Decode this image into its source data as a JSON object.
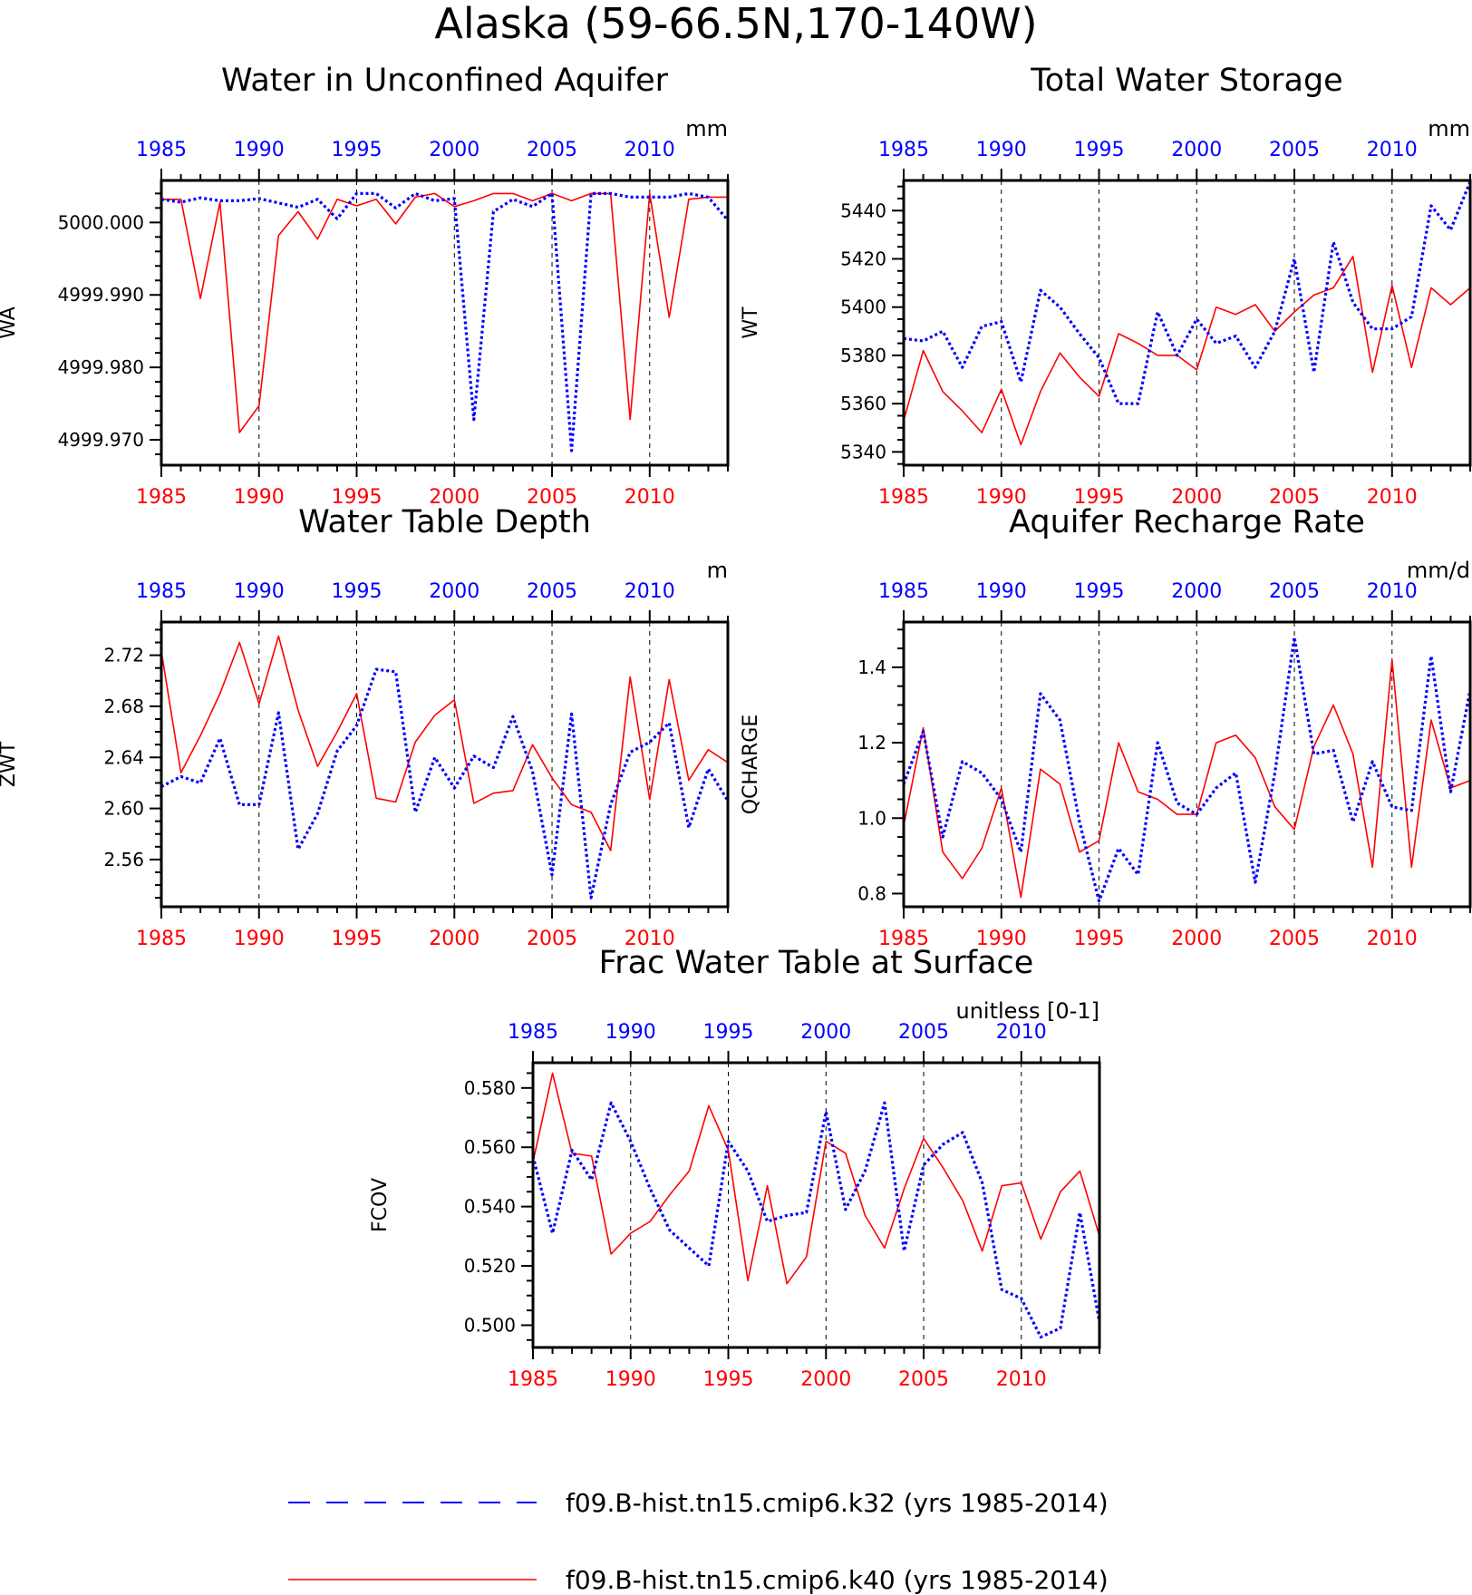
{
  "title": "Alaska (59-66.5N,170-140W)",
  "colors": {
    "k32": "#0000ff",
    "k40": "#ff0000",
    "axis": "#000000"
  },
  "legend": [
    {
      "label": "f09.B-hist.tn15.cmip6.k32 (yrs 1985-2014)",
      "color": "#0000ff",
      "style": "dashed"
    },
    {
      "label": "f09.B-hist.tn15.cmip6.k40 (yrs 1985-2014)",
      "color": "#ff0000",
      "style": "solid"
    }
  ],
  "chart_data": [
    {
      "type": "line",
      "title": "Water in Unconfined Aquifer",
      "units": "mm",
      "ylabel": "WA",
      "xlim": [
        1985,
        2014
      ],
      "ylim": [
        4999.9665,
        5000.0058
      ],
      "yticks": [
        "5000.000",
        "4999.990",
        "4999.980",
        "4999.970"
      ],
      "ytick_values": [
        5000.0,
        4999.99,
        4999.98,
        4999.97
      ],
      "yminor_step": 0.002,
      "xticks": [
        "1985",
        "1990",
        "1995",
        "2000",
        "2005",
        "2010"
      ],
      "series": [
        {
          "name": "f09.B-hist.tn15.cmip6.k32 (yrs 1985-2014)",
          "key": "k32",
          "values": [
            5000.0032,
            5000.0028,
            5000.0034,
            5000.003,
            5000.003,
            5000.0033,
            5000.0027,
            5000.0021,
            5000.0032,
            5000.0005,
            5000.004,
            5000.004,
            5000.002,
            5000.004,
            5000.003,
            5000.0033,
            4999.9728,
            5000.0015,
            5000.0032,
            5000.0022,
            5000.004,
            4999.9685,
            5000.004,
            5000.004,
            5000.0035,
            5000.0035,
            5000.0035,
            5000.004,
            5000.0035,
            5000.0003
          ]
        },
        {
          "name": "f09.B-hist.tn15.cmip6.k40 (yrs 1985-2014)",
          "key": "k40",
          "values": [
            5000.0032,
            5000.0032,
            4999.9895,
            5000.0028,
            4999.971,
            4999.9747,
            4999.9982,
            5000.0015,
            4999.9977,
            5000.0032,
            5000.0023,
            5000.0032,
            4999.9998,
            5000.0035,
            5000.004,
            5000.0022,
            5000.003,
            5000.004,
            5000.004,
            5000.003,
            5000.004,
            5000.003,
            5000.004,
            5000.004,
            4999.9728,
            5000.004,
            4999.9869,
            5000.0032,
            5000.0035,
            5000.0035
          ]
        }
      ]
    },
    {
      "type": "line",
      "title": "Total Water Storage",
      "units": "mm",
      "ylabel": "WT",
      "xlim": [
        1985,
        2014
      ],
      "ylim": [
        5334.5,
        5452.5
      ],
      "yticks": [
        "5440",
        "5420",
        "5400",
        "5380",
        "5360",
        "5340"
      ],
      "ytick_values": [
        5440,
        5420,
        5400,
        5380,
        5360,
        5340
      ],
      "yminor_step": 5,
      "xticks": [
        "1985",
        "1990",
        "1995",
        "2000",
        "2005",
        "2010"
      ],
      "series": [
        {
          "name": "f09.B-hist.tn15.cmip6.k32 (yrs 1985-2014)",
          "key": "k32",
          "values": [
            5387,
            5386,
            5390,
            5375,
            5392,
            5394,
            5369,
            5407,
            5400,
            5389,
            5379,
            5360,
            5360,
            5398,
            5380,
            5395,
            5385,
            5388,
            5375,
            5390,
            5420,
            5373,
            5427,
            5402,
            5391,
            5391,
            5396,
            5442,
            5432,
            5452
          ]
        },
        {
          "name": "f09.B-hist.tn15.cmip6.k40 (yrs 1985-2014)",
          "key": "k40",
          "values": [
            5353,
            5382,
            5365,
            5357,
            5348,
            5366,
            5343,
            5365,
            5381,
            5371,
            5363,
            5389,
            5385,
            5380,
            5380,
            5374,
            5400,
            5397,
            5401,
            5390,
            5398,
            5405,
            5408,
            5421,
            5373,
            5409,
            5375,
            5408,
            5401,
            5408
          ]
        }
      ]
    },
    {
      "type": "line",
      "title": "Water Table Depth",
      "units": "m",
      "ylabel": "ZWT",
      "xlim": [
        1985,
        2014
      ],
      "ylim": [
        2.523,
        2.746
      ],
      "yticks": [
        "2.72",
        "2.68",
        "2.64",
        "2.60",
        "2.56"
      ],
      "ytick_values": [
        2.72,
        2.68,
        2.64,
        2.6,
        2.56
      ],
      "yminor_step": 0.01,
      "xticks": [
        "1985",
        "1990",
        "1995",
        "2000",
        "2005",
        "2010"
      ],
      "series": [
        {
          "name": "f09.B-hist.tn15.cmip6.k32 (yrs 1985-2014)",
          "key": "k32",
          "values": [
            2.617,
            2.625,
            2.62,
            2.655,
            2.603,
            2.603,
            2.675,
            2.568,
            2.596,
            2.645,
            2.665,
            2.709,
            2.707,
            2.597,
            2.64,
            2.616,
            2.641,
            2.632,
            2.672,
            2.629,
            2.548,
            2.674,
            2.53,
            2.603,
            2.644,
            2.652,
            2.667,
            2.585,
            2.631,
            2.606
          ]
        },
        {
          "name": "f09.B-hist.tn15.cmip6.k40 (yrs 1985-2014)",
          "key": "k40",
          "values": [
            2.723,
            2.628,
            2.657,
            2.69,
            2.73,
            2.682,
            2.735,
            2.677,
            2.633,
            2.66,
            2.69,
            2.608,
            2.605,
            2.652,
            2.673,
            2.685,
            2.604,
            2.612,
            2.614,
            2.65,
            2.624,
            2.603,
            2.597,
            2.567,
            2.703,
            2.607,
            2.701,
            2.622,
            2.646,
            2.636
          ]
        }
      ]
    },
    {
      "type": "line",
      "title": "Aquifer Recharge Rate",
      "units": "mm/d",
      "ylabel": "QCHARGE",
      "xlim": [
        1985,
        2014
      ],
      "ylim": [
        0.765,
        1.52
      ],
      "yticks": [
        "1.4",
        "1.2",
        "1.0",
        "0.8"
      ],
      "ytick_values": [
        1.4,
        1.2,
        1.0,
        0.8
      ],
      "yminor_step": 0.05,
      "xticks": [
        "1985",
        "1990",
        "1995",
        "2000",
        "2005",
        "2010"
      ],
      "series": [
        {
          "name": "f09.B-hist.tn15.cmip6.k32 (yrs 1985-2014)",
          "key": "k32",
          "values": [
            1.09,
            1.23,
            0.95,
            1.15,
            1.12,
            1.05,
            0.91,
            1.33,
            1.26,
            0.99,
            0.78,
            0.92,
            0.85,
            1.2,
            1.04,
            1.01,
            1.08,
            1.12,
            0.83,
            1.12,
            1.48,
            1.17,
            1.18,
            0.99,
            1.15,
            1.03,
            1.02,
            1.43,
            1.07,
            1.34
          ]
        },
        {
          "name": "f09.B-hist.tn15.cmip6.k40 (yrs 1985-2014)",
          "key": "k40",
          "values": [
            0.98,
            1.24,
            0.91,
            0.84,
            0.92,
            1.08,
            0.79,
            1.13,
            1.09,
            0.91,
            0.94,
            1.2,
            1.07,
            1.05,
            1.01,
            1.01,
            1.2,
            1.22,
            1.16,
            1.03,
            0.97,
            1.19,
            1.3,
            1.17,
            0.87,
            1.42,
            0.87,
            1.26,
            1.08,
            1.1
          ]
        }
      ]
    },
    {
      "type": "line",
      "title": "Frac Water Table at Surface",
      "units": "unitless [0-1]",
      "ylabel": "FCOV",
      "xlim": [
        1985,
        2014
      ],
      "ylim": [
        0.4925,
        0.5885
      ],
      "yticks": [
        "0.580",
        "0.560",
        "0.540",
        "0.520",
        "0.500"
      ],
      "ytick_values": [
        0.58,
        0.56,
        0.54,
        0.52,
        0.5
      ],
      "yminor_step": 0.005,
      "xticks": [
        "1985",
        "1990",
        "1995",
        "2000",
        "2005",
        "2010"
      ],
      "series": [
        {
          "name": "f09.B-hist.tn15.cmip6.k32 (yrs 1985-2014)",
          "key": "k32",
          "values": [
            0.557,
            0.531,
            0.559,
            0.549,
            0.575,
            0.562,
            0.546,
            0.532,
            0.526,
            0.52,
            0.562,
            0.552,
            0.535,
            0.537,
            0.538,
            0.572,
            0.539,
            0.552,
            0.575,
            0.525,
            0.554,
            0.561,
            0.565,
            0.548,
            0.512,
            0.509,
            0.496,
            0.499,
            0.538,
            0.501
          ]
        },
        {
          "name": "f09.B-hist.tn15.cmip6.k40 (yrs 1985-2014)",
          "key": "k40",
          "values": [
            0.555,
            0.585,
            0.558,
            0.557,
            0.524,
            0.531,
            0.535,
            0.544,
            0.552,
            0.574,
            0.559,
            0.515,
            0.547,
            0.514,
            0.523,
            0.562,
            0.558,
            0.537,
            0.526,
            0.546,
            0.563,
            0.553,
            0.542,
            0.525,
            0.547,
            0.548,
            0.529,
            0.545,
            0.552,
            0.53
          ]
        }
      ]
    }
  ]
}
